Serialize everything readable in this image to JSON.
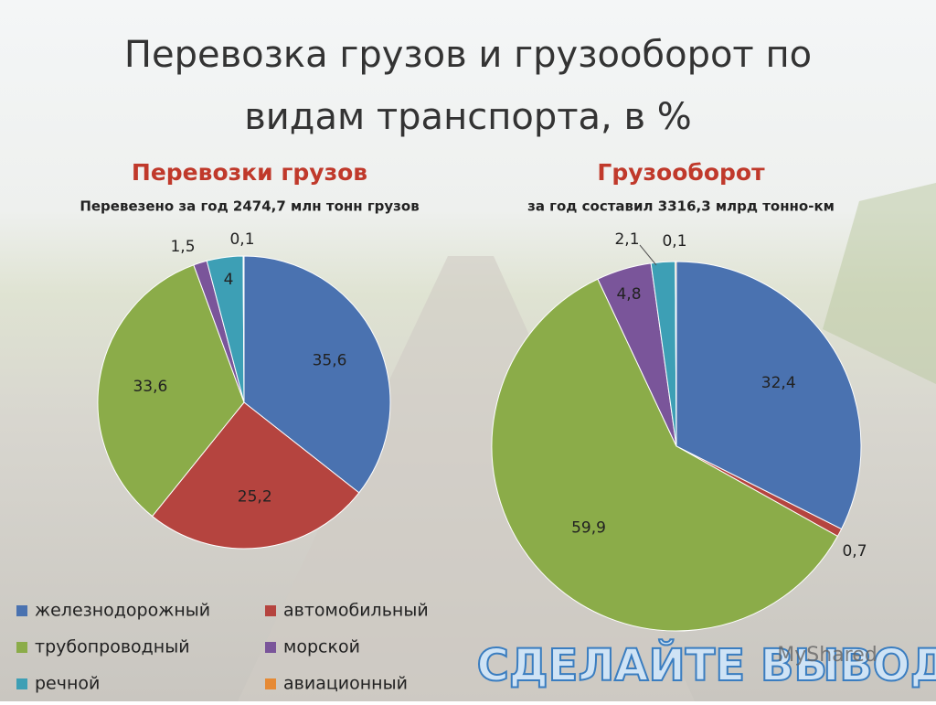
{
  "title": "Перевозка грузов и грузооборот по видам транспорта, в %",
  "chart_data": [
    {
      "type": "pie",
      "title": "Перевозки грузов",
      "subtitle": "Перевезено за год 2474,7 млн тонн грузов",
      "categories": [
        "железнодорожный",
        "автомобильный",
        "трубопроводный",
        "морской",
        "речной",
        "авиационный"
      ],
      "values": [
        35.6,
        25.2,
        33.6,
        1.5,
        4,
        0.1
      ],
      "value_labels": [
        "35,6",
        "25,2",
        "33,6",
        "1,5",
        "4",
        "0,1"
      ],
      "colors": [
        "#4a72b0",
        "#b5443f",
        "#8bac49",
        "#7a559a",
        "#3d9fb5",
        "#e68a35"
      ]
    },
    {
      "type": "pie",
      "title": "Грузооборот",
      "subtitle": "за год составил 3316,3 млрд тонно-км",
      "categories": [
        "железнодорожный",
        "автомобильный",
        "трубопроводный",
        "морской",
        "речной",
        "авиационный"
      ],
      "values": [
        32.4,
        0.7,
        59.9,
        4.8,
        2.1,
        0.1
      ],
      "value_labels": [
        "32,4",
        "0,7",
        "59,9",
        "4,8",
        "2,1",
        "0,1"
      ],
      "colors": [
        "#4a72b0",
        "#b5443f",
        "#8bac49",
        "#7a559a",
        "#3d9fb5",
        "#e68a35"
      ]
    }
  ],
  "footer": "СДЕЛАЙТЕ ВЫВОД",
  "watermark": "MyShared"
}
